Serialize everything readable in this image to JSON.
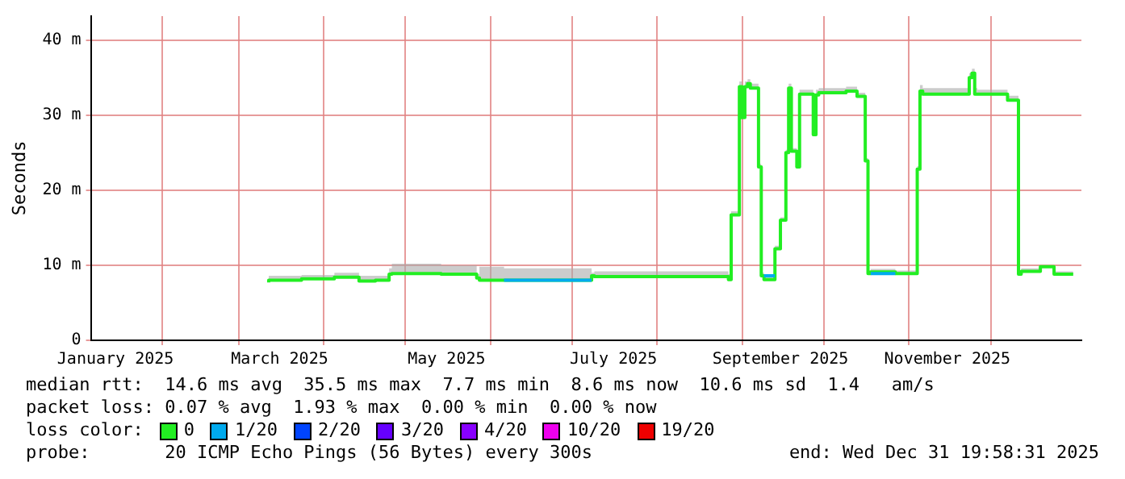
{
  "chart_data": {
    "type": "step",
    "ylabel": "Seconds",
    "legend_title": "loss color:",
    "legend": "bottom",
    "grid": true,
    "xlim": [
      "2025-01-06",
      "2026-01-03"
    ],
    "xticks": [
      {
        "value": "2025-02-01",
        "label": null
      },
      {
        "value": "2025-03-01",
        "label": null
      },
      {
        "value": "2025-04-01",
        "label": null
      },
      {
        "value": "2025-05-01",
        "label": null
      },
      {
        "value": "2025-06-01",
        "label": null
      },
      {
        "value": "2025-07-01",
        "label": null
      },
      {
        "value": "2025-08-01",
        "label": null
      },
      {
        "value": "2025-09-01",
        "label": null
      },
      {
        "value": "2025-10-01",
        "label": null
      },
      {
        "value": "2025-11-01",
        "label": null
      },
      {
        "value": "2025-12-01",
        "label": null
      },
      {
        "value": "2025-01-15",
        "label": "January 2025"
      },
      {
        "value": "2025-03-16",
        "label": "March 2025"
      },
      {
        "value": "2025-05-16",
        "label": "May 2025"
      },
      {
        "value": "2025-07-16",
        "label": "July 2025"
      },
      {
        "value": "2025-09-15",
        "label": "September 2025"
      },
      {
        "value": "2025-11-15",
        "label": "November 2025"
      }
    ],
    "ylim": [
      0,
      43.2
    ],
    "yticks": [
      0,
      {
        "value": 10,
        "label": "10 m"
      },
      {
        "value": 20,
        "label": "20 m"
      },
      {
        "value": 30,
        "label": "30 m"
      },
      {
        "value": 40,
        "label": "40 m"
      }
    ],
    "x": [
      "2025-03-12",
      "2025-03-24",
      "2025-04-05",
      "2025-04-14",
      "2025-04-20",
      "2025-04-25",
      "2025-04-26",
      "2025-05-14",
      "2025-05-27",
      "2025-05-28",
      "2025-06-06",
      "2025-07-08",
      "2025-07-09",
      "2025-08-27",
      "2025-08-28",
      "2025-08-31",
      "2025-09-01",
      "2025-09-02",
      "2025-09-03",
      "2025-09-04",
      "2025-09-07",
      "2025-09-08",
      "2025-09-09",
      "2025-09-13",
      "2025-09-15",
      "2025-09-17",
      "2025-09-18",
      "2025-09-19",
      "2025-09-21",
      "2025-09-22",
      "2025-09-23",
      "2025-09-27",
      "2025-09-28",
      "2025-09-29",
      "2025-10-09",
      "2025-10-13",
      "2025-10-16",
      "2025-10-17",
      "2025-10-18",
      "2025-10-27",
      "2025-11-04",
      "2025-11-05",
      "2025-11-06",
      "2025-11-08",
      "2025-11-23",
      "2025-11-24",
      "2025-11-25",
      "2025-11-26",
      "2025-12-07",
      "2025-12-11",
      "2025-12-12",
      "2025-12-19",
      "2025-12-24",
      "2025-12-25",
      "2025-12-31"
    ],
    "series": [
      {
        "name": "0",
        "color": "#22ee22",
        "values": [
          7.7,
          8.0,
          8.2,
          8.4,
          7.9,
          8.0,
          8.8,
          8.9,
          8.8,
          8.3,
          8.0,
          8.0,
          8.6,
          8.5,
          8.1,
          16.7,
          33.8,
          29.7,
          33.8,
          34.2,
          33.6,
          23.1,
          8.6,
          8.1,
          12.2,
          16.0,
          25.0,
          33.6,
          25.2,
          23.1,
          32.8,
          32.8,
          27.4,
          32.7,
          33.0,
          33.2,
          32.5,
          23.9,
          8.9,
          9.1,
          8.9,
          22.8,
          33.2,
          32.8,
          32.8,
          35.0,
          35.6,
          32.8,
          32.8,
          32.0,
          8.8,
          9.2,
          9.8,
          8.8,
          8.8
        ],
        "lower": [
          7.7,
          8.0,
          8.2,
          8.4,
          7.9,
          8.0,
          8.8,
          8.9,
          8.8,
          8.3,
          8.0,
          8.0,
          8.6,
          8.5,
          8.1,
          16.7,
          33.8,
          29.7,
          33.8,
          34.2,
          33.6,
          23.1,
          8.6,
          8.1,
          12.2,
          16.0,
          25.0,
          33.6,
          25.2,
          23.1,
          32.8,
          32.8,
          27.4,
          32.7,
          33.0,
          33.2,
          32.5,
          23.9,
          8.9,
          9.1,
          8.9,
          22.8,
          33.2,
          32.8,
          32.8,
          35.0,
          35.6,
          32.8,
          32.8,
          32.0,
          8.8,
          9.2,
          9.8,
          8.8,
          8.8
        ],
        "upper": [
          8.4,
          8.6,
          8.7,
          9.0,
          8.6,
          8.6,
          9.6,
          10.2,
          10.0,
          8.8,
          9.8,
          9.6,
          9.0,
          9.2,
          8.8,
          17.2,
          34.5,
          30.2,
          34.5,
          34.8,
          34.2,
          23.5,
          9.0,
          8.5,
          12.6,
          16.4,
          25.4,
          34.2,
          25.6,
          23.5,
          33.4,
          33.4,
          27.8,
          33.4,
          33.6,
          33.8,
          33.0,
          24.3,
          9.3,
          9.5,
          9.3,
          23.2,
          34.0,
          33.6,
          33.6,
          35.6,
          36.2,
          33.6,
          33.4,
          32.6,
          9.3,
          9.6,
          10.0,
          9.2,
          9.2
        ]
      },
      {
        "name": "1/20",
        "color": "#00aaee",
        "values": [
          null,
          null,
          null,
          null,
          null,
          null,
          null,
          null,
          null,
          null,
          8.0,
          8.0,
          null,
          null,
          null,
          null,
          null,
          null,
          null,
          null,
          null,
          null,
          8.6,
          8.6,
          null,
          null,
          null,
          null,
          null,
          null,
          null,
          null,
          null,
          null,
          null,
          null,
          null,
          null,
          8.9,
          8.9,
          null,
          null,
          null,
          null,
          null,
          null,
          null,
          null,
          null,
          null,
          null,
          null,
          null,
          null,
          null
        ]
      },
      {
        "name": "2/20",
        "color": "#0044ff",
        "values": [
          null,
          null,
          null,
          null,
          null,
          null,
          null,
          null,
          null,
          null,
          null,
          null,
          null,
          null,
          null,
          null,
          null,
          null,
          null,
          null,
          null,
          null,
          null,
          null,
          null,
          null,
          null,
          null,
          null,
          null,
          null,
          null,
          null,
          null,
          null,
          null,
          null,
          null,
          null,
          null,
          null,
          null,
          null,
          null,
          null,
          null,
          null,
          null,
          null,
          null,
          null,
          null,
          null,
          null,
          null
        ]
      },
      {
        "name": "3/20",
        "color": "#6600ff",
        "values": [
          null,
          null,
          null,
          null,
          null,
          null,
          null,
          null,
          null,
          null,
          null,
          null,
          null,
          null,
          null,
          null,
          null,
          null,
          null,
          null,
          null,
          null,
          null,
          null,
          null,
          null,
          null,
          null,
          null,
          null,
          null,
          null,
          null,
          null,
          null,
          null,
          null,
          null,
          null,
          null,
          null,
          null,
          null,
          null,
          null,
          null,
          null,
          null,
          null,
          null,
          null,
          null,
          null,
          null,
          null
        ]
      },
      {
        "name": "4/20",
        "color": "#8800ff",
        "values": [
          null,
          null,
          null,
          null,
          null,
          null,
          null,
          null,
          null,
          null,
          null,
          null,
          null,
          null,
          null,
          null,
          null,
          null,
          null,
          null,
          null,
          null,
          null,
          null,
          null,
          null,
          null,
          null,
          null,
          null,
          null,
          null,
          null,
          null,
          null,
          null,
          null,
          null,
          null,
          null,
          null,
          null,
          null,
          null,
          null,
          null,
          null,
          null,
          null,
          null,
          null,
          null,
          null,
          null,
          null
        ]
      },
      {
        "name": "10/20",
        "color": "#ee00ee",
        "values": [
          null,
          null,
          null,
          null,
          null,
          null,
          null,
          null,
          null,
          null,
          null,
          null,
          null,
          null,
          null,
          null,
          null,
          null,
          null,
          null,
          null,
          null,
          null,
          null,
          null,
          null,
          null,
          null,
          null,
          null,
          null,
          null,
          null,
          null,
          null,
          null,
          null,
          null,
          null,
          null,
          null,
          null,
          null,
          null,
          null,
          null,
          null,
          null,
          null,
          null,
          null,
          null,
          null,
          null,
          null
        ]
      },
      {
        "name": "19/20",
        "color": "#ee0000",
        "values": [
          null,
          null,
          null,
          null,
          null,
          null,
          null,
          null,
          null,
          null,
          null,
          null,
          null,
          null,
          null,
          null,
          null,
          null,
          null,
          null,
          null,
          null,
          null,
          null,
          null,
          null,
          null,
          null,
          null,
          null,
          null,
          null,
          null,
          null,
          null,
          null,
          null,
          null,
          null,
          null,
          null,
          null,
          null,
          null,
          null,
          null,
          null,
          null,
          null,
          null,
          null,
          null,
          null,
          null,
          null
        ]
      }
    ],
    "annotations": [
      "median rtt:  14.6 ms avg  35.5 ms max  7.7 ms min  8.6 ms now  10.6 ms sd  1.4   am/s",
      "packet loss: 0.07 % avg  1.93 % max  0.00 % min  0.00 % now",
      "probe:       20 ICMP Echo Pings (56 Bytes) every 300s",
      "end: Wed Dec 31 19:58:31 2025"
    ]
  }
}
